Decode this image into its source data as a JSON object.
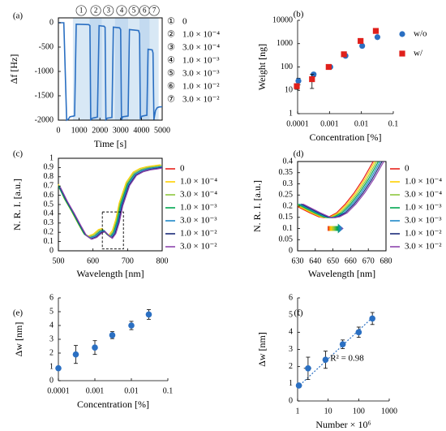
{
  "chart_data": [
    {
      "panel": "(a)",
      "type": "line",
      "xlabel": "Time [s]",
      "ylabel": "Δf [Hz]",
      "xlim": [
        0,
        5000
      ],
      "ylim": [
        -2000,
        100
      ],
      "xticks": [
        "0",
        "1000",
        "2000",
        "3000",
        "4000",
        "5000"
      ],
      "yticks": [
        "0",
        "-500",
        "-1000",
        "-1500",
        "-2000"
      ],
      "series": [
        {
          "values": [
            [
              0,
              0
            ],
            [
              260,
              0
            ],
            [
              400,
              -2000
            ],
            [
              480,
              -1980
            ],
            [
              560,
              -1930
            ],
            [
              700,
              -1920
            ],
            [
              780,
              -1910
            ],
            [
              860,
              -30
            ],
            [
              1460,
              -38
            ],
            [
              1520,
              -60
            ],
            [
              1560,
              -1990
            ],
            [
              1640,
              -1960
            ],
            [
              1800,
              -1945
            ],
            [
              1880,
              -1935
            ],
            [
              1960,
              -60
            ],
            [
              2200,
              -72
            ],
            [
              2250,
              -95
            ],
            [
              2290,
              -1990
            ],
            [
              2350,
              -1960
            ],
            [
              2500,
              -1950
            ],
            [
              2580,
              -1945
            ],
            [
              2650,
              -90
            ],
            [
              2950,
              -105
            ],
            [
              3000,
              -140
            ],
            [
              3040,
              -1990
            ],
            [
              3100,
              -1930
            ],
            [
              3280,
              -1920
            ],
            [
              3360,
              -1915
            ],
            [
              3420,
              -140
            ],
            [
              3860,
              -160
            ],
            [
              3910,
              -230
            ],
            [
              3950,
              -1980
            ],
            [
              4020,
              -1920
            ],
            [
              4180,
              -1905
            ],
            [
              4260,
              -1900
            ],
            [
              4320,
              -545
            ],
            [
              4520,
              -558
            ],
            [
              4560,
              -620
            ],
            [
              4600,
              -1990
            ],
            [
              4680,
              -1800
            ],
            [
              4760,
              -1745
            ],
            [
              4850,
              -1730
            ],
            [
              5000,
              -1725
            ]
          ]
        }
      ],
      "shaded_bands": [
        [
          700,
          1500
        ],
        [
          1500,
          2100
        ],
        [
          2100,
          2720
        ],
        [
          2720,
          3370
        ],
        [
          3370,
          3900
        ],
        [
          3900,
          4400
        ],
        [
          4400,
          4830
        ]
      ],
      "segment_markers": [
        "①",
        "②",
        "③",
        "④",
        "⑤",
        "⑥",
        "⑦"
      ],
      "concentration_key": [
        {
          "mark": "①",
          "label": "0"
        },
        {
          "mark": "②",
          "label": "1.0 × 10⁻⁴"
        },
        {
          "mark": "③",
          "label": "3.0 × 10⁻⁴"
        },
        {
          "mark": "④",
          "label": "1.0 × 10⁻³"
        },
        {
          "mark": "⑤",
          "label": "3.0 × 10⁻³"
        },
        {
          "mark": "⑥",
          "label": "1.0 × 10⁻²"
        },
        {
          "mark": "⑦",
          "label": "3.0 × 10⁻²"
        }
      ],
      "colors": {
        "line": "#2a6fc2",
        "band": "#d4e5f4"
      }
    },
    {
      "panel": "(b)",
      "type": "scatter",
      "xlabel": "Concentration [%]",
      "ylabel": "Weight [ng]",
      "xscale": "log",
      "yscale": "log",
      "xlim": [
        0.0001,
        0.1
      ],
      "ylim": [
        1,
        10000
      ],
      "xticks": [
        "0.0001",
        "0.001",
        "0.01",
        "0.1"
      ],
      "yticks": [
        "1",
        "10",
        "100",
        "1000",
        "10000"
      ],
      "legend_position": "right",
      "series": [
        {
          "name": "w/o",
          "marker": "circle",
          "color": "#2a6fc2",
          "x": [
            0.0001,
            0.0003,
            0.001,
            0.003,
            0.01,
            0.03
          ],
          "y": [
            25,
            48,
            100,
            300,
            800,
            1900
          ],
          "err": [
            8,
            10,
            10,
            30,
            60,
            200
          ]
        },
        {
          "name": "w/",
          "marker": "square",
          "color": "#e0201b",
          "x": [
            0.0001,
            0.0003,
            0.001,
            0.003,
            0.01,
            0.03
          ],
          "y": [
            15,
            30,
            100,
            350,
            1300,
            3500
          ],
          "err": [
            4,
            18,
            0,
            0,
            0,
            0
          ]
        }
      ]
    },
    {
      "panel": "(c)",
      "type": "line",
      "xlabel": "Wavelength [nm]",
      "ylabel": "N. R. I. [a.u.]",
      "xlim": [
        500,
        800
      ],
      "ylim": [
        0,
        1
      ],
      "xticks": [
        "500",
        "600",
        "700",
        "800"
      ],
      "yticks": [
        "0",
        "0.1",
        "0.2",
        "0.3",
        "0.4",
        "0.5",
        "0.6",
        "0.7",
        "0.8",
        "0.9",
        "1"
      ],
      "zoom_box": {
        "x": [
          627,
          688
        ],
        "y": [
          0.02,
          0.42
        ]
      },
      "base_curve": [
        [
          500,
          0.7
        ],
        [
          520,
          0.55
        ],
        [
          540,
          0.42
        ],
        [
          560,
          0.28
        ],
        [
          575,
          0.18
        ],
        [
          590,
          0.14
        ],
        [
          605,
          0.16
        ],
        [
          620,
          0.21
        ],
        [
          630,
          0.22
        ],
        [
          640,
          0.18
        ],
        [
          650,
          0.15
        ],
        [
          660,
          0.2
        ],
        [
          670,
          0.32
        ],
        [
          680,
          0.5
        ],
        [
          700,
          0.72
        ],
        [
          720,
          0.83
        ],
        [
          740,
          0.87
        ],
        [
          760,
          0.89
        ],
        [
          780,
          0.9
        ],
        [
          800,
          0.91
        ]
      ],
      "series": [
        {
          "name": "0",
          "color": "#e8221c",
          "offset": 0.0,
          "shift": 0
        },
        {
          "name": "1.0 × 10⁻⁴",
          "color": "#ffd000",
          "offset": 0.02,
          "shift": -4
        },
        {
          "name": "3.0 × 10⁻⁴",
          "color": "#8dc63f",
          "offset": 0.01,
          "shift": -2
        },
        {
          "name": "1.0 × 10⁻³",
          "color": "#00a651",
          "offset": 0.0,
          "shift": 0
        },
        {
          "name": "3.0 × 10⁻³",
          "color": "#1e88c8",
          "offset": 0.0,
          "shift": 2
        },
        {
          "name": "1.0 × 10⁻²",
          "color": "#1a2a78",
          "offset": -0.01,
          "shift": 4
        },
        {
          "name": "3.0 × 10⁻²",
          "color": "#8e44ad",
          "offset": -0.015,
          "shift": 6
        }
      ]
    },
    {
      "panel": "(d)",
      "type": "line",
      "xlabel": "Wavelength [nm]",
      "ylabel": "N. R. I. [a.u.]",
      "xlim": [
        630,
        680
      ],
      "ylim": [
        0,
        0.4
      ],
      "xticks": [
        "630",
        "640",
        "650",
        "660",
        "670",
        "680"
      ],
      "yticks": [
        "0",
        "0.05",
        "0.1",
        "0.15",
        "0.2",
        "0.25",
        "0.3",
        "0.35",
        "0.4"
      ],
      "base_curve": [
        [
          630,
          0.21
        ],
        [
          635,
          0.19
        ],
        [
          640,
          0.17
        ],
        [
          645,
          0.152
        ],
        [
          648,
          0.148
        ],
        [
          651,
          0.153
        ],
        [
          655,
          0.17
        ],
        [
          660,
          0.21
        ],
        [
          665,
          0.26
        ],
        [
          670,
          0.32
        ],
        [
          675,
          0.39
        ],
        [
          680,
          0.46
        ]
      ],
      "arrow": {
        "x": [
          647,
          656
        ],
        "y": 0.1
      },
      "series": [
        {
          "name": "0",
          "color": "#e8221c",
          "shift": -3.0
        },
        {
          "name": "1.0 × 10⁻⁴",
          "color": "#ffd000",
          "shift": -2.0
        },
        {
          "name": "3.0 × 10⁻⁴",
          "color": "#8dc63f",
          "shift": -1.0
        },
        {
          "name": "1.0 × 10⁻³",
          "color": "#00a651",
          "shift": 0.0
        },
        {
          "name": "3.0 × 10⁻³",
          "color": "#1e88c8",
          "shift": 1.0
        },
        {
          "name": "1.0 × 10⁻²",
          "color": "#1a2a78",
          "shift": 2.0
        },
        {
          "name": "3.0 × 10⁻²",
          "color": "#8e44ad",
          "shift": 3.0
        }
      ]
    },
    {
      "panel": "(e)",
      "type": "scatter",
      "xlabel": "Concentration [%]",
      "ylabel": "Δw [nm]",
      "xscale": "log",
      "xlim": [
        0.0001,
        0.1
      ],
      "ylim": [
        0,
        6
      ],
      "xticks": [
        "0.0001",
        "0.001",
        "0.01",
        "0.1"
      ],
      "yticks": [
        "0",
        "1",
        "2",
        "3",
        "4",
        "5",
        "6"
      ],
      "series": [
        {
          "color": "#2a6fc2",
          "x": [
            0.0001,
            0.0003,
            0.001,
            0.003,
            0.01,
            0.03
          ],
          "y": [
            0.9,
            1.9,
            2.4,
            3.3,
            4.0,
            4.8
          ],
          "err": [
            0.1,
            0.65,
            0.5,
            0.25,
            0.3,
            0.35
          ]
        }
      ]
    },
    {
      "panel": "(f)",
      "type": "scatter",
      "xlabel": "Number × 10⁶",
      "ylabel": "Δw [nm]",
      "xscale": "log",
      "xlim": [
        1,
        1000
      ],
      "ylim": [
        0,
        6
      ],
      "xticks": [
        "1",
        "10",
        "100",
        "1000"
      ],
      "yticks": [
        "0",
        "1",
        "2",
        "3",
        "4",
        "5",
        "6"
      ],
      "annotation": "R² = 0.98",
      "trendline": {
        "x": [
          1,
          300
        ],
        "y": [
          0.8,
          4.9
        ]
      },
      "series": [
        {
          "color": "#2a6fc2",
          "x": [
            1.1,
            2.2,
            8.2,
            30,
            100,
            280
          ],
          "y": [
            0.9,
            1.9,
            2.4,
            3.3,
            4.0,
            4.8
          ],
          "err": [
            0.1,
            0.65,
            0.5,
            0.25,
            0.3,
            0.35
          ],
          "xerr": [
            0.3,
            0.6,
            0,
            0,
            0,
            0
          ]
        }
      ]
    }
  ]
}
